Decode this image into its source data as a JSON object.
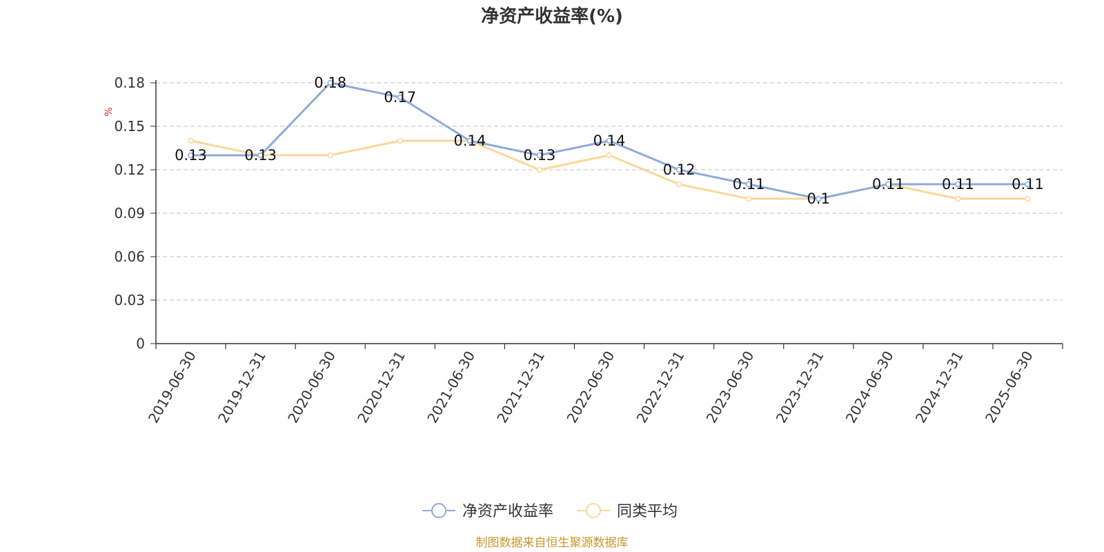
{
  "chart_data": {
    "type": "line",
    "title": "净资产收益率(%)",
    "ylabel": "%",
    "xlabel": "",
    "ylim": [
      0,
      0.18
    ],
    "yticks": [
      "0",
      "0.03",
      "0.06",
      "0.09",
      "0.12",
      "0.15",
      "0.18"
    ],
    "ytick_values": [
      0,
      0.03,
      0.06,
      0.09,
      0.12,
      0.15,
      0.18
    ],
    "grid": true,
    "legend_position": "bottom",
    "categories": [
      "2019-06-30",
      "2019-12-31",
      "2020-06-30",
      "2020-12-31",
      "2021-06-30",
      "2021-12-31",
      "2022-06-30",
      "2022-12-31",
      "2023-06-30",
      "2023-12-31",
      "2024-06-30",
      "2024-12-31",
      "2025-06-30"
    ],
    "series": [
      {
        "name": "净资产收益率",
        "color": "#8eaad8",
        "values": [
          0.13,
          0.13,
          0.18,
          0.17,
          0.14,
          0.13,
          0.14,
          0.12,
          0.11,
          0.1,
          0.11,
          0.11,
          0.11
        ],
        "labels": [
          "0.13",
          "0.13",
          "0.18",
          "0.17",
          "0.14",
          "0.13",
          "0.14",
          "0.12",
          "0.11",
          "0.1",
          "0.11",
          "0.11",
          "0.11"
        ]
      },
      {
        "name": "同类平均",
        "color": "#fbd898",
        "values": [
          0.14,
          0.13,
          0.13,
          0.14,
          0.14,
          0.12,
          0.13,
          0.11,
          0.1,
          0.1,
          0.11,
          0.1,
          0.1
        ]
      }
    ]
  },
  "source": "制图数据来自恒生聚源数据库",
  "colors": {
    "axis": "#333333",
    "grid": "#cccccc",
    "unit": "#e02020",
    "source": "#c8962e"
  }
}
